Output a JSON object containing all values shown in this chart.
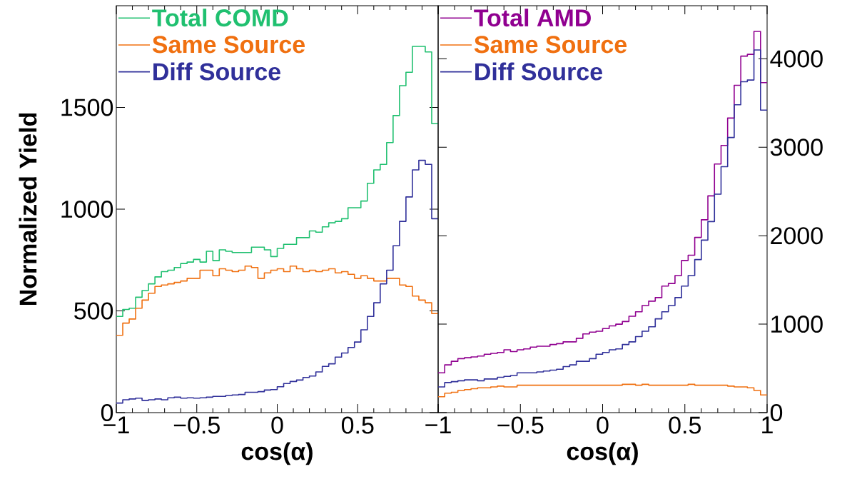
{
  "chart_data": [
    {
      "type": "histogram",
      "xlabel": "cos(α)",
      "ylabel": "Normalized Yield",
      "legend": "top left",
      "bins": [
        -1,
        -0.96,
        -0.92,
        -0.88,
        -0.84,
        -0.8,
        -0.76,
        -0.72,
        -0.68,
        -0.64,
        -0.6,
        -0.56,
        -0.52,
        -0.48,
        -0.44,
        -0.4,
        -0.36,
        -0.32,
        -0.28,
        -0.24,
        -0.2,
        -0.16,
        -0.12,
        -0.08,
        -0.04,
        0,
        0.04,
        0.08,
        0.12,
        0.16,
        0.2,
        0.24,
        0.28,
        0.32,
        0.36,
        0.4,
        0.44,
        0.48,
        0.52,
        0.56,
        0.6,
        0.64,
        0.68,
        0.72,
        0.76,
        0.8,
        0.84,
        0.88,
        0.92,
        0.96,
        1
      ],
      "series": [
        {
          "name": "Total COMD",
          "color": "#20c070",
          "values": [
            473,
            507,
            513,
            567,
            600,
            633,
            667,
            693,
            700,
            713,
            733,
            740,
            753,
            740,
            793,
            747,
            800,
            793,
            787,
            787,
            787,
            813,
            813,
            800,
            767,
            807,
            827,
            827,
            860,
            860,
            893,
            887,
            913,
            933,
            940,
            953,
            1007,
            1007,
            1040,
            1127,
            1193,
            1220,
            1327,
            1460,
            1607,
            1673,
            1800,
            1800,
            1773,
            1420
          ]
        },
        {
          "name": "Same Source",
          "color": "#f07010",
          "values": [
            380,
            440,
            460,
            513,
            553,
            587,
            620,
            627,
            633,
            640,
            647,
            660,
            660,
            700,
            700,
            673,
            707,
            700,
            693,
            700,
            720,
            713,
            660,
            687,
            700,
            707,
            693,
            720,
            707,
            693,
            700,
            693,
            700,
            707,
            687,
            693,
            680,
            660,
            673,
            660,
            647,
            647,
            660,
            660,
            627,
            620,
            573,
            553,
            540,
            487
          ]
        },
        {
          "name": "Diff Source",
          "color": "#30309a",
          "values": [
            47,
            63,
            67,
            71,
            60,
            63,
            67,
            63,
            73,
            76,
            71,
            73,
            71,
            73,
            76,
            80,
            80,
            84,
            87,
            89,
            100,
            100,
            103,
            111,
            113,
            127,
            143,
            153,
            160,
            173,
            180,
            200,
            227,
            240,
            273,
            293,
            320,
            347,
            407,
            473,
            540,
            633,
            700,
            820,
            940,
            1060,
            1193,
            1240,
            1220,
            953
          ]
        }
      ],
      "xlim": [
        -1,
        1
      ],
      "xticks": [
        {
          "value": -1,
          "label": "−1"
        },
        {
          "value": -0.5,
          "label": "−0.5"
        },
        0,
        0.5,
        {
          "value": 1,
          "label": null
        }
      ],
      "ylim": [
        0,
        2000
      ],
      "yticks": [
        0,
        500,
        1000,
        1500
      ]
    },
    {
      "type": "histogram",
      "xlabel": "cos(α)",
      "legend": "top left",
      "bins": [
        -1,
        -0.96,
        -0.92,
        -0.88,
        -0.84,
        -0.8,
        -0.76,
        -0.72,
        -0.68,
        -0.64,
        -0.6,
        -0.56,
        -0.52,
        -0.48,
        -0.44,
        -0.4,
        -0.36,
        -0.32,
        -0.28,
        -0.24,
        -0.2,
        -0.16,
        -0.12,
        -0.08,
        -0.04,
        0,
        0.04,
        0.08,
        0.12,
        0.16,
        0.2,
        0.24,
        0.28,
        0.32,
        0.36,
        0.4,
        0.44,
        0.48,
        0.52,
        0.56,
        0.6,
        0.64,
        0.68,
        0.72,
        0.76,
        0.8,
        0.84,
        0.88,
        0.92,
        0.96,
        1
      ],
      "series": [
        {
          "name": "Total AMD",
          "color": "#900090",
          "axis": "y2",
          "values": [
            450,
            540,
            580,
            610,
            620,
            630,
            640,
            660,
            670,
            680,
            710,
            690,
            710,
            720,
            740,
            750,
            750,
            770,
            780,
            800,
            800,
            840,
            890,
            910,
            920,
            950,
            980,
            1000,
            1030,
            1090,
            1140,
            1210,
            1260,
            1300,
            1430,
            1460,
            1550,
            1720,
            1780,
            1980,
            2180,
            2450,
            2810,
            3020,
            3330,
            3700,
            4030,
            4050,
            4310,
            3730
          ]
        },
        {
          "name": "Same Source",
          "color": "#f07010",
          "axis": "y2",
          "values": [
            180,
            220,
            230,
            250,
            260,
            270,
            280,
            280,
            290,
            300,
            290,
            290,
            310,
            310,
            310,
            310,
            310,
            310,
            310,
            310,
            310,
            310,
            310,
            310,
            310,
            310,
            310,
            310,
            320,
            320,
            310,
            320,
            310,
            310,
            310,
            310,
            310,
            310,
            320,
            310,
            310,
            310,
            310,
            310,
            300,
            290,
            290,
            280,
            250,
            200
          ]
        },
        {
          "name": "Diff Source",
          "color": "#30309a",
          "axis": "y2",
          "values": [
            290,
            340,
            350,
            360,
            370,
            370,
            360,
            380,
            380,
            400,
            410,
            420,
            450,
            450,
            450,
            460,
            470,
            480,
            490,
            520,
            540,
            580,
            580,
            610,
            660,
            680,
            710,
            720,
            770,
            800,
            860,
            920,
            970,
            1060,
            1140,
            1210,
            1300,
            1430,
            1550,
            1730,
            1950,
            2160,
            2470,
            2780,
            3110,
            3480,
            3740,
            3760,
            4100,
            3420
          ]
        }
      ],
      "xlim": [
        -1,
        1
      ],
      "xticks": [
        {
          "value": -1,
          "label": "−1"
        },
        {
          "value": -0.5,
          "label": "−0.5"
        },
        0,
        0.5,
        1
      ],
      "y2lim": [
        0,
        4600
      ],
      "y2ticks": [
        0,
        1000,
        2000,
        3000,
        4000
      ]
    }
  ]
}
